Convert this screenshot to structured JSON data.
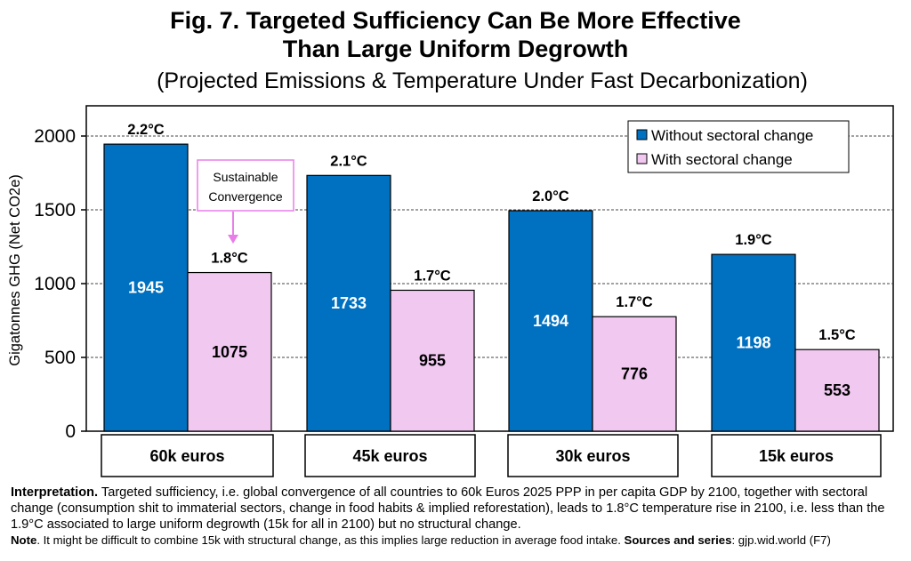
{
  "title_line1": "Fig. 7. Targeted Sufficiency Can Be More Effective",
  "title_line2": "Than Large Uniform Degrowth",
  "subtitle": "(Projected Emissions & Temperature Under Fast Decarbonization)",
  "chart_data": {
    "type": "bar",
    "categories": [
      "60k euros",
      "45k euros",
      "30k euros",
      "15k euros"
    ],
    "series": [
      {
        "name": "Without sectoral change",
        "values": [
          1945,
          1733,
          1494,
          1198
        ],
        "temps": [
          "2.2°C",
          "2.1°C",
          "2.0°C",
          "1.9°C"
        ],
        "color": "#0070c0"
      },
      {
        "name": "With sectoral change",
        "values": [
          1075,
          955,
          776,
          553
        ],
        "temps": [
          "1.8°C",
          "1.7°C",
          "1.7°C",
          "1.5°C"
        ],
        "color": "#f0c8f0"
      }
    ],
    "ylabel": "Gigatonnes GHG (Net CO2e)",
    "ylim": [
      0,
      2000
    ],
    "yticks": [
      0,
      500,
      1000,
      1500,
      2000
    ],
    "grid": "horizontal dashed",
    "legend": "top-right",
    "annotation": "Sustainable Convergence"
  },
  "footer": {
    "interpretation_label": "Interpretation.",
    "interpretation_text": " Targeted sufficiency, i.e. global convergence of all countries to 60k Euros 2025 PPP in per capita GDP by 2100, together with sectoral change (consumption shit to immaterial sectors, change in food habits & implied reforestation), leads to 1.8°C temperature rise in 2100, i.e. less than the 1.9°C associated to large uniform degrowth (15k for all in 2100) but no structural change.",
    "note_label": "Note",
    "note_text": ". It might be difficult to combine 15k with structural change, as this implies large reduction in average food intake. ",
    "sources_label": "Sources and series",
    "sources_text": ": gjp.wid.world (F7)"
  }
}
